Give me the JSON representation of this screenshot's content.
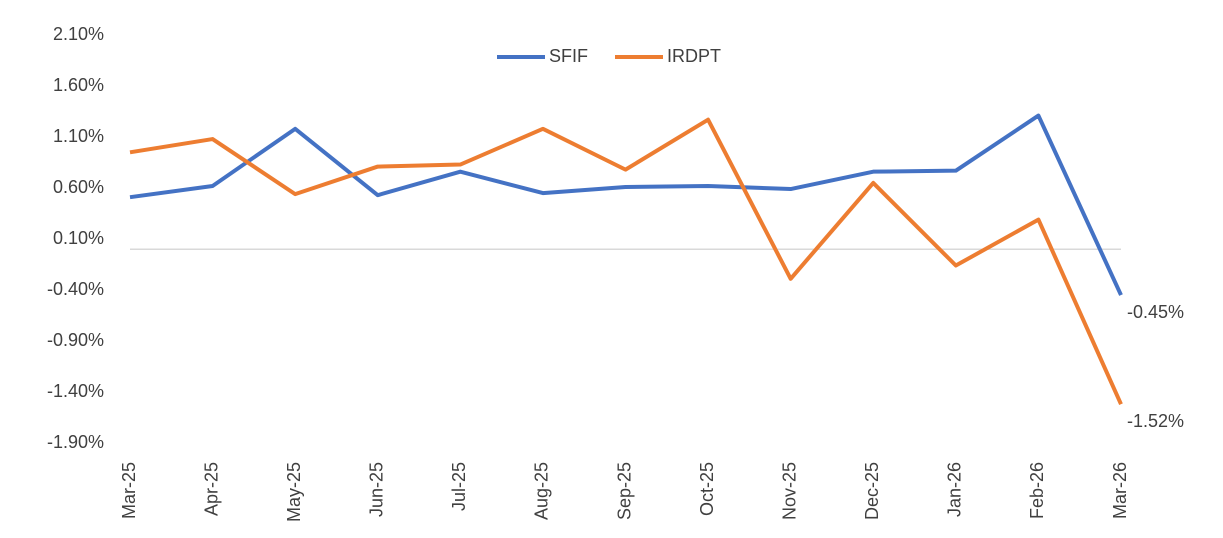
{
  "chart_data": {
    "type": "line",
    "categories": [
      "Mar-25",
      "Apr-25",
      "May-25",
      "Jun-25",
      "Jul-25",
      "Aug-25",
      "Sep-25",
      "Oct-25",
      "Nov-25",
      "Dec-25",
      "Jan-26",
      "Feb-26",
      "Mar-26"
    ],
    "series": [
      {
        "name": "SFIF",
        "color": "#4472c4",
        "values": [
          0.51,
          0.62,
          1.18,
          0.53,
          0.76,
          0.55,
          0.61,
          0.62,
          0.59,
          0.76,
          0.77,
          1.31,
          -0.45
        ],
        "value_labels": [
          null,
          null,
          null,
          null,
          null,
          null,
          null,
          null,
          null,
          null,
          null,
          null,
          "-0.45%"
        ]
      },
      {
        "name": "IRDPT",
        "color": "#ed7d31",
        "values": [
          0.95,
          1.08,
          0.54,
          0.81,
          0.83,
          1.18,
          0.78,
          1.27,
          -0.29,
          0.65,
          -0.16,
          0.29,
          -1.52
        ],
        "value_labels": [
          null,
          null,
          null,
          null,
          null,
          null,
          null,
          null,
          null,
          null,
          null,
          null,
          "-1.52%"
        ]
      }
    ],
    "ylim": [
      -1.9,
      2.1
    ],
    "yticks": [
      {
        "value": -1.9,
        "label": "-1.90%"
      },
      {
        "value": -1.4,
        "label": "-1.40%"
      },
      {
        "value": -0.9,
        "label": "-0.90%"
      },
      {
        "value": -0.4,
        "label": "-0.40%"
      },
      {
        "value": 0.1,
        "label": "0.10%"
      },
      {
        "value": 0.6,
        "label": "0.60%"
      },
      {
        "value": 1.1,
        "label": "1.10%"
      },
      {
        "value": 1.6,
        "label": "1.60%"
      },
      {
        "value": 2.1,
        "label": "2.10%"
      }
    ],
    "legend": "top"
  }
}
